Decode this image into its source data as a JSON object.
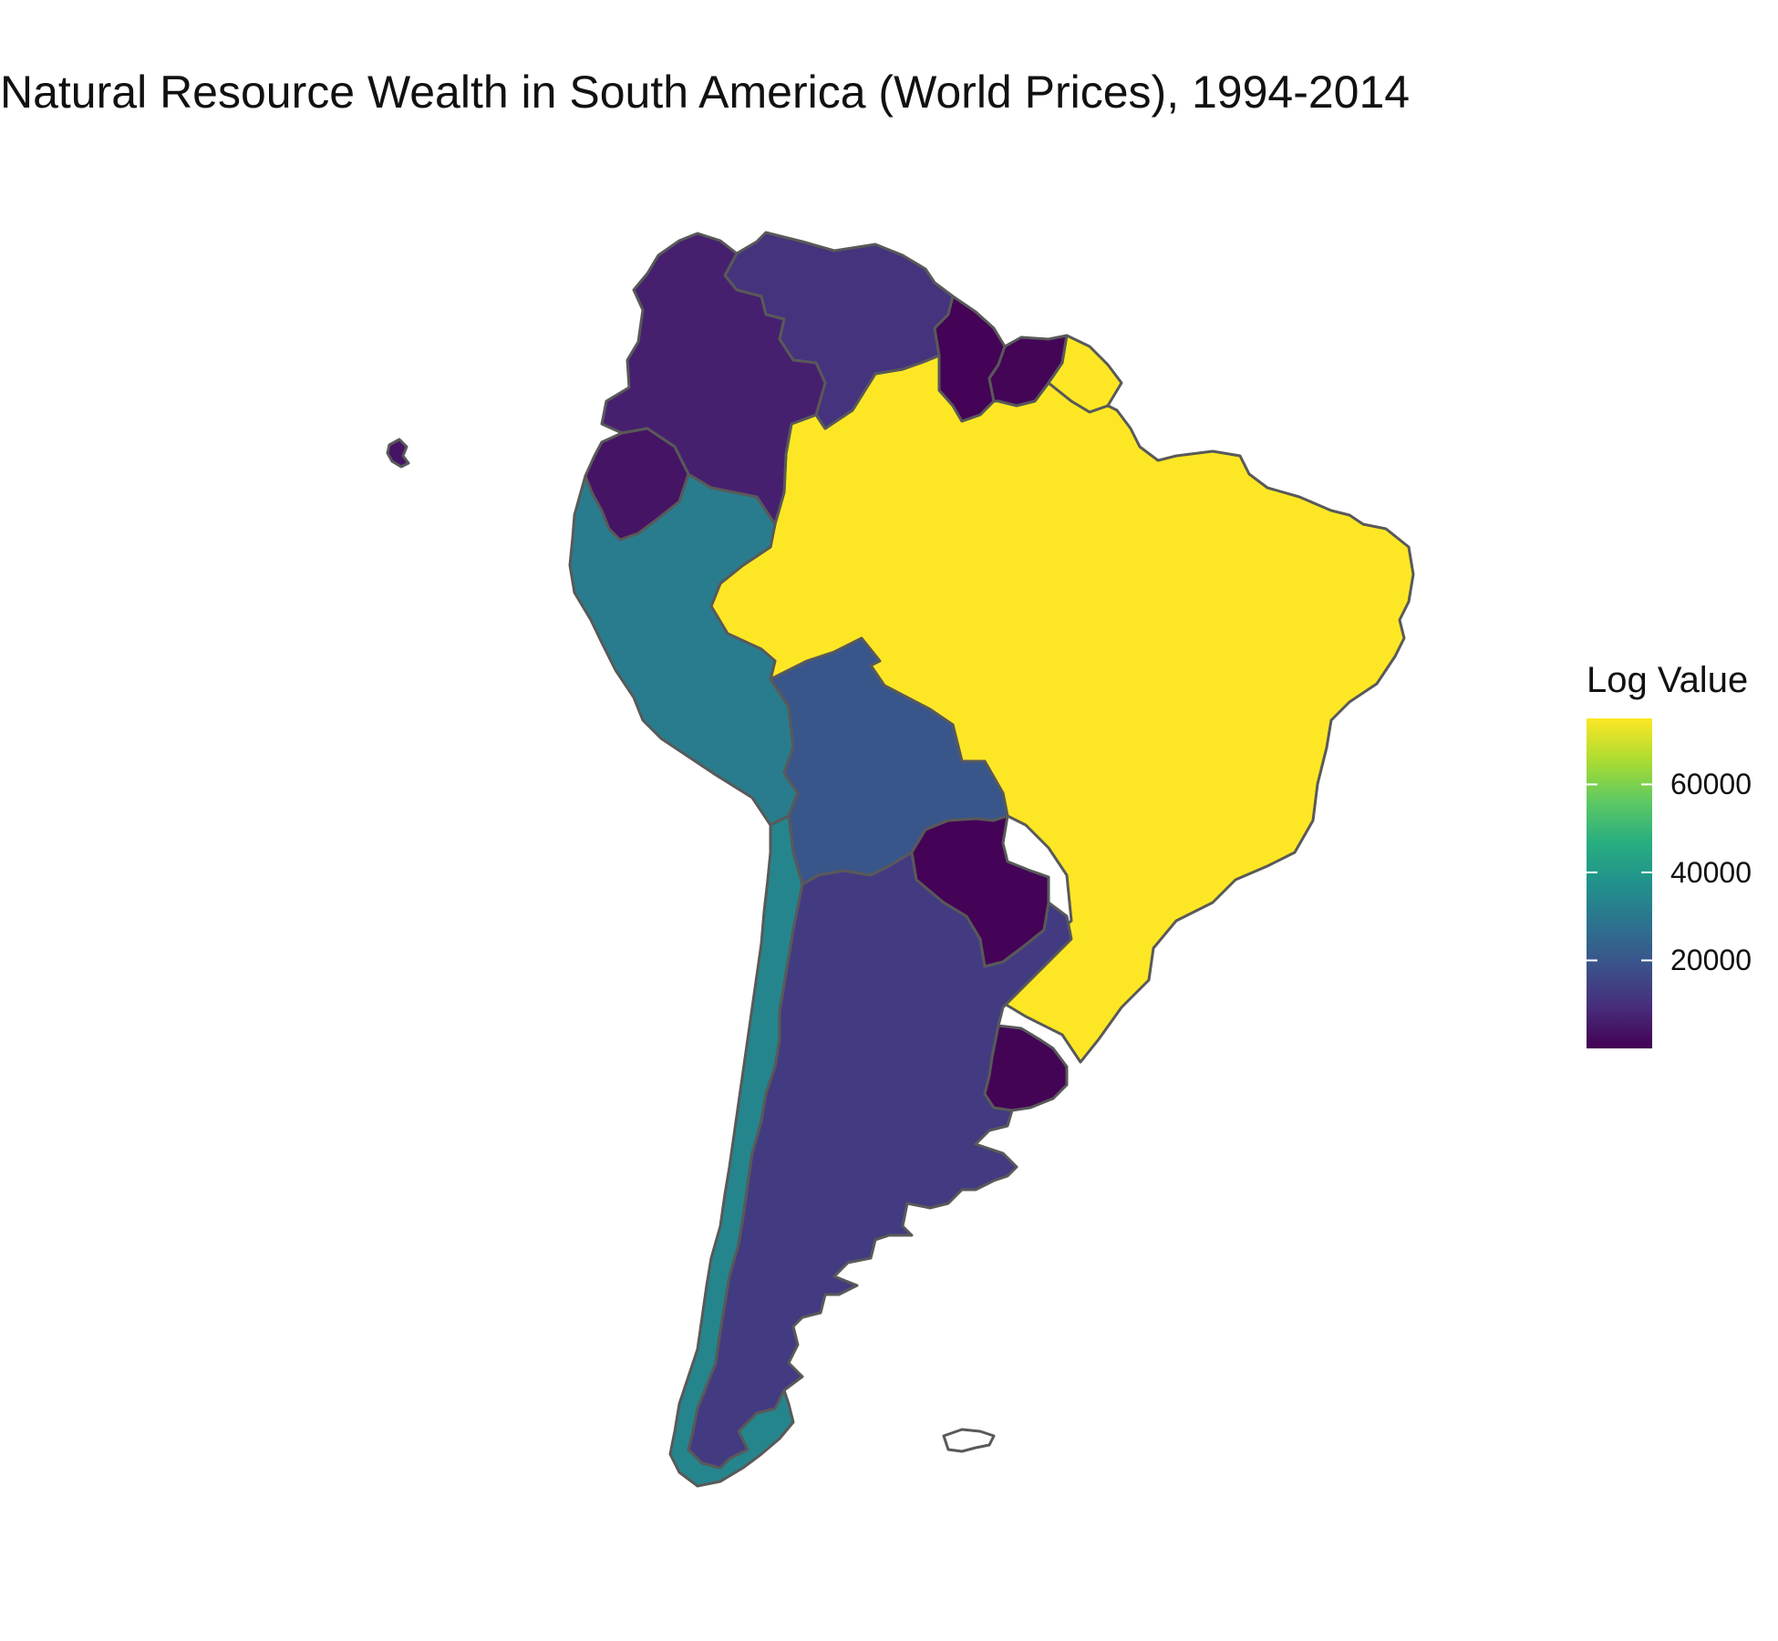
{
  "chart_data": {
    "type": "choropleth",
    "title": "Natural Resource Wealth in South America (World Prices), 1994-2014",
    "legend": {
      "title": "Log Value",
      "placement": "right",
      "colorscale": "viridis",
      "range": [
        0,
        75000
      ],
      "ticks": [
        {
          "value": 20000,
          "label": "20000"
        },
        {
          "value": 40000,
          "label": "40000"
        },
        {
          "value": 60000,
          "label": "60000"
        }
      ]
    },
    "regions": [
      {
        "name": "Brazil",
        "value": 75000
      },
      {
        "name": "Peru",
        "value": 31000
      },
      {
        "name": "Chile",
        "value": 34000
      },
      {
        "name": "Bolivia",
        "value": 20000
      },
      {
        "name": "Argentina",
        "value": 13000
      },
      {
        "name": "Venezuela",
        "value": 11000
      },
      {
        "name": "Colombia",
        "value": 6500
      },
      {
        "name": "Ecuador",
        "value": 4000
      },
      {
        "name": "Guyana",
        "value": 500
      },
      {
        "name": "Suriname",
        "value": 800
      },
      {
        "name": "Paraguay",
        "value": 500
      },
      {
        "name": "Uruguay",
        "value": 600
      },
      {
        "name": "French Guiana",
        "value": 75000
      },
      {
        "name": "Falkland Islands",
        "value": null
      },
      {
        "name": "Galapagos",
        "value": 4000
      }
    ]
  },
  "colors": {
    "border": "#595959",
    "background": "#ffffff",
    "text": "#111111"
  }
}
